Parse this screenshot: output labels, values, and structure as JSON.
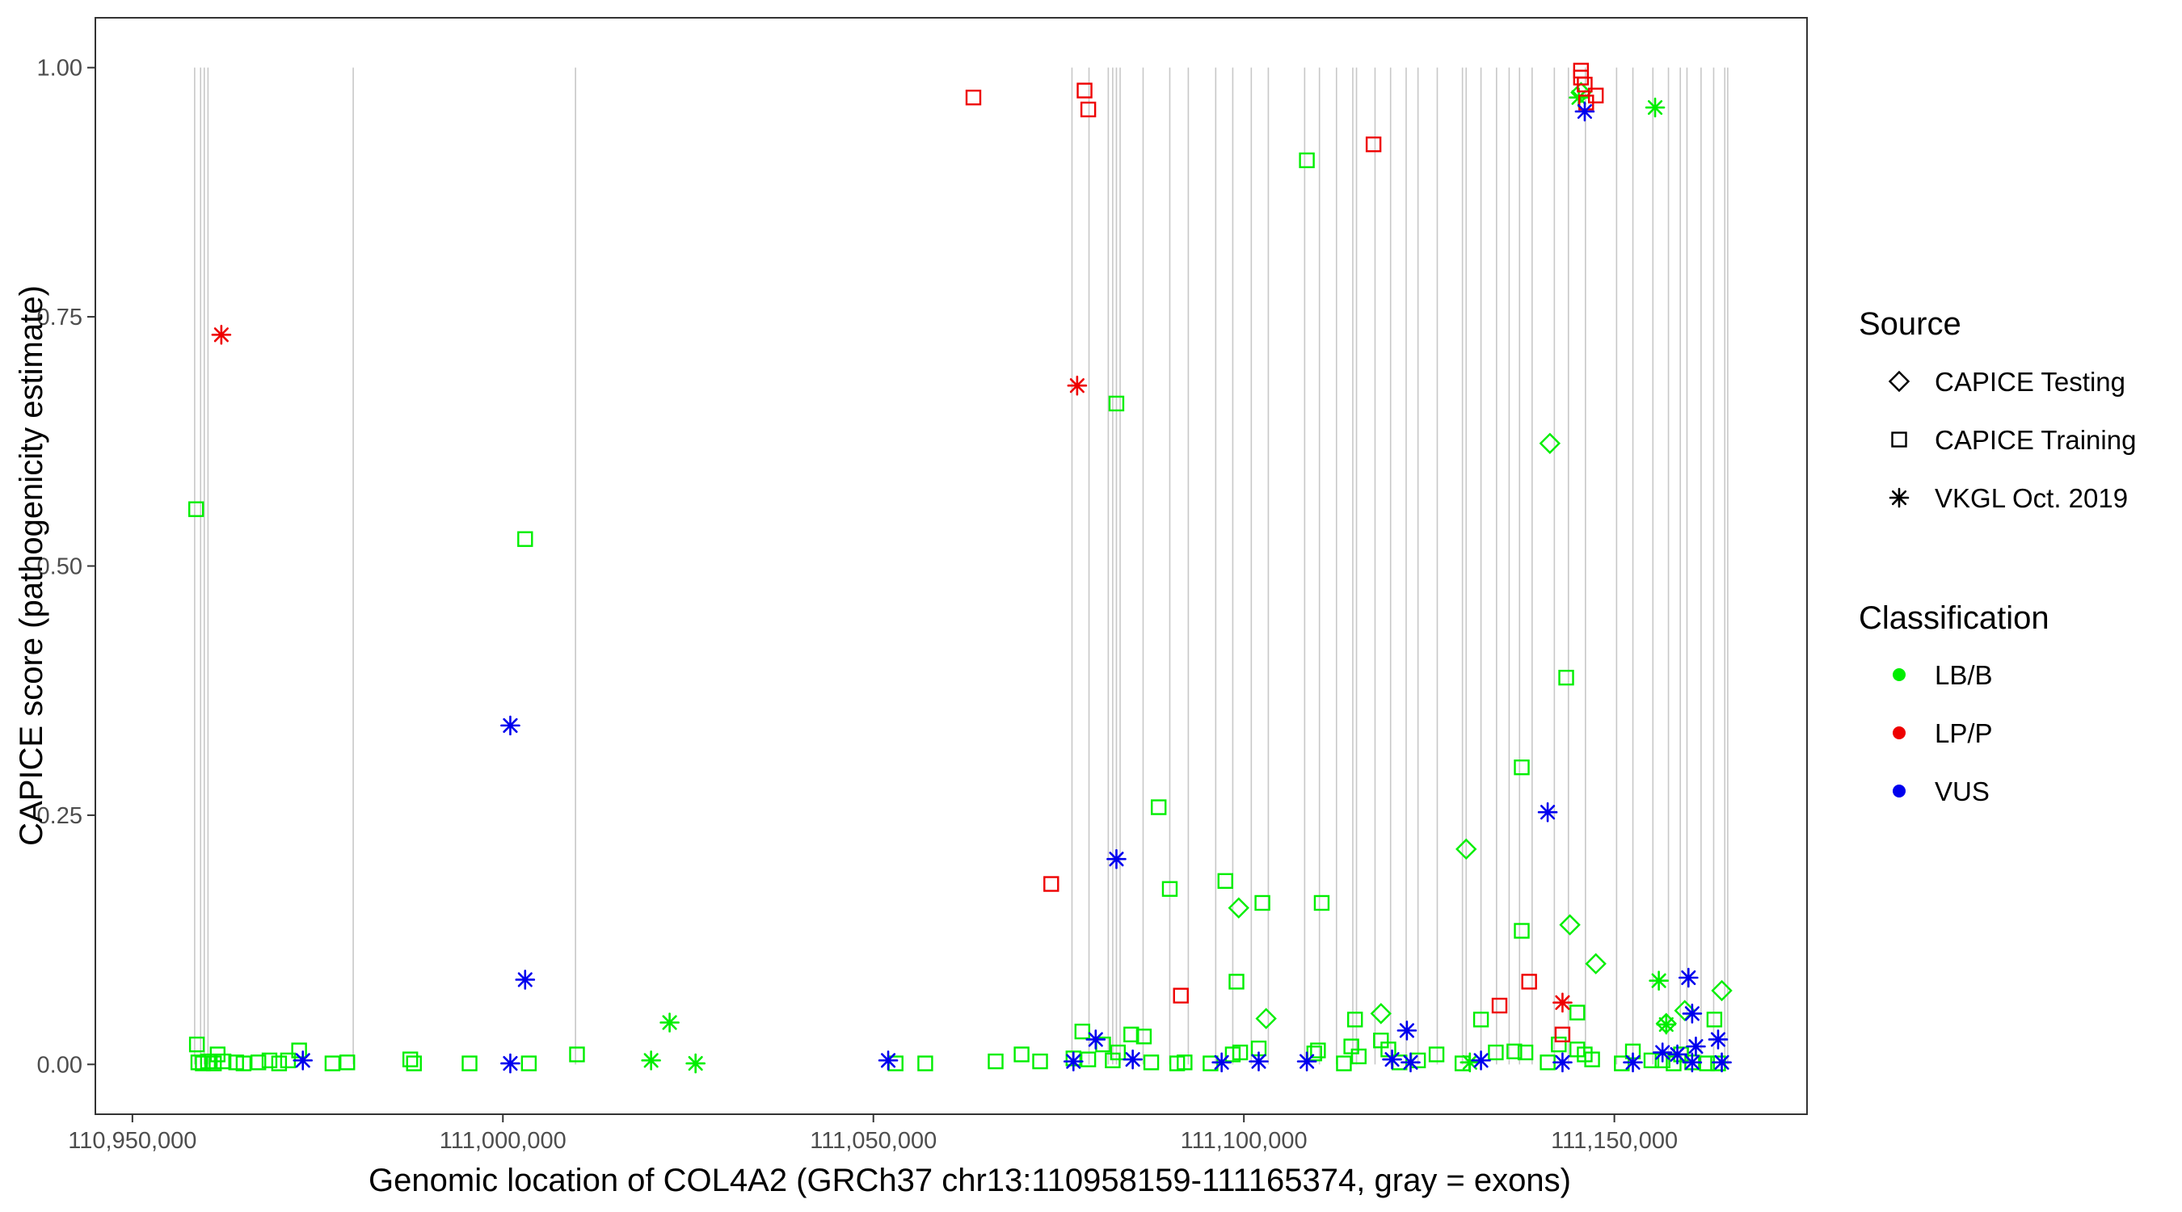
{
  "chart_data": {
    "type": "scatter",
    "xlabel": "Genomic location of COL4A2 (GRCh37 chr13:110958159-111165374, gray = exons)",
    "ylabel": "CAPICE score (pathogenicity estimate)",
    "xlim": [
      110945000,
      111176000
    ],
    "ylim": [
      -0.05,
      1.05
    ],
    "x_ticks": [
      110950000,
      111000000,
      111050000,
      111100000,
      111150000
    ],
    "x_tick_labels": [
      "110,950,000",
      "111,000,000",
      "111,050,000",
      "111,100,000",
      "111,150,000"
    ],
    "y_ticks": [
      0,
      0.25,
      0.5,
      0.75,
      1.0
    ],
    "y_tick_labels": [
      "0.00",
      "0.25",
      "0.50",
      "0.75",
      "1.00"
    ],
    "grid": false,
    "exons": [
      110958400,
      110959200,
      110959700,
      110960200,
      110979800,
      111009800,
      111076800,
      111079100,
      111081700,
      111082300,
      111082800,
      111083300,
      111086400,
      111090000,
      111092500,
      111096200,
      111098500,
      111101000,
      111103300,
      111108200,
      111110200,
      111112500,
      111114700,
      111115200,
      111117700,
      111119800,
      111121900,
      111123500,
      111126100,
      111129500,
      111130000,
      111132000,
      111134100,
      111135800,
      111137200,
      111138900,
      111141900,
      111143800,
      111146100,
      111150300,
      111152500,
      111155200,
      111157300,
      111158900,
      111159800,
      111161700,
      111163400,
      111164900,
      111165300
    ],
    "legend": {
      "source_title": "Source",
      "source_entries": [
        {
          "label": "CAPICE Testing",
          "shape": "diamond"
        },
        {
          "label": "CAPICE Training",
          "shape": "square"
        },
        {
          "label": "VKGL Oct. 2019",
          "shape": "asterisk"
        }
      ],
      "class_title": "Classification",
      "class_entries": [
        {
          "label": "LB/B",
          "color": "#00ee00"
        },
        {
          "label": "LP/P",
          "color": "#ee0000"
        },
        {
          "label": "VUS",
          "color": "#0000ee"
        }
      ],
      "placement": "right"
    },
    "series": [
      {
        "name": "LB/B · CAPICE Training",
        "shape": "square",
        "color": "#00ee00",
        "points": [
          [
            110958600,
            0.557
          ],
          [
            110958700,
            0.02
          ],
          [
            110958900,
            0.002
          ],
          [
            110959500,
            0.001
          ],
          [
            110960200,
            0.003
          ],
          [
            110961000,
            0.001
          ],
          [
            110961500,
            0.01
          ],
          [
            110962300,
            0.003
          ],
          [
            110964000,
            0.002
          ],
          [
            110965000,
            0.001
          ],
          [
            110967000,
            0.002
          ],
          [
            110968500,
            0.004
          ],
          [
            110969800,
            0.001
          ],
          [
            110971000,
            0.004
          ],
          [
            110972500,
            0.014
          ],
          [
            110977000,
            0.001
          ],
          [
            110979000,
            0.002
          ],
          [
            110987500,
            0.005
          ],
          [
            110988000,
            0.001
          ],
          [
            110995500,
            0.001
          ],
          [
            111003000,
            0.527
          ],
          [
            111003500,
            0.001
          ],
          [
            111010000,
            0.01
          ],
          [
            111053000,
            0.001
          ],
          [
            111057000,
            0.001
          ],
          [
            111066500,
            0.003
          ],
          [
            111070000,
            0.01
          ],
          [
            111072500,
            0.003
          ],
          [
            111077000,
            0.006
          ],
          [
            111078200,
            0.033
          ],
          [
            111079000,
            0.005
          ],
          [
            111081000,
            0.02
          ],
          [
            111082300,
            0.004
          ],
          [
            111082800,
            0.663
          ],
          [
            111083000,
            0.012
          ],
          [
            111084800,
            0.03
          ],
          [
            111086500,
            0.028
          ],
          [
            111087500,
            0.002
          ],
          [
            111088500,
            0.258
          ],
          [
            111090000,
            0.176
          ],
          [
            111091000,
            0.001
          ],
          [
            111092000,
            0.002
          ],
          [
            111095500,
            0.001
          ],
          [
            111097500,
            0.184
          ],
          [
            111098500,
            0.01
          ],
          [
            111099000,
            0.083
          ],
          [
            111099500,
            0.012
          ],
          [
            111102000,
            0.016
          ],
          [
            111102500,
            0.162
          ],
          [
            111108500,
            0.907
          ],
          [
            111109500,
            0.011
          ],
          [
            111110500,
            0.162
          ],
          [
            111110000,
            0.014
          ],
          [
            111113500,
            0.001
          ],
          [
            111115000,
            0.045
          ],
          [
            111114500,
            0.018
          ],
          [
            111115500,
            0.008
          ],
          [
            111118500,
            0.024
          ],
          [
            111119500,
            0.015
          ],
          [
            111121000,
            0.002
          ],
          [
            111123500,
            0.004
          ],
          [
            111126000,
            0.01
          ],
          [
            111129500,
            0.001
          ],
          [
            111132000,
            0.045
          ],
          [
            111134000,
            0.012
          ],
          [
            111136500,
            0.013
          ],
          [
            111137500,
            0.134
          ],
          [
            111137500,
            0.298
          ],
          [
            111138000,
            0.012
          ],
          [
            111141000,
            0.002
          ],
          [
            111142500,
            0.02
          ],
          [
            111143500,
            0.388
          ],
          [
            111145000,
            0.052
          ],
          [
            111145000,
            0.015
          ],
          [
            111146000,
            0.01
          ],
          [
            111147000,
            0.005
          ],
          [
            111151000,
            0.001
          ],
          [
            111152500,
            0.013
          ],
          [
            111155000,
            0.004
          ],
          [
            111156500,
            0.004
          ],
          [
            111158000,
            0.001
          ],
          [
            111159000,
            0.01
          ],
          [
            111160500,
            0.002
          ],
          [
            111162500,
            0.001
          ],
          [
            111163500,
            0.045
          ],
          [
            111164000,
            0.001
          ]
        ]
      },
      {
        "name": "LB/B · CAPICE Testing",
        "shape": "diamond",
        "color": "#00ee00",
        "points": [
          [
            111099300,
            0.157
          ],
          [
            111103000,
            0.046
          ],
          [
            111118500,
            0.051
          ],
          [
            111130000,
            0.216
          ],
          [
            111141300,
            0.623
          ],
          [
            111144000,
            0.14
          ],
          [
            111145500,
            0.975
          ],
          [
            111147500,
            0.101
          ],
          [
            111157000,
            0.041
          ],
          [
            111159500,
            0.054
          ],
          [
            111164500,
            0.074
          ]
        ]
      },
      {
        "name": "LB/B · VKGL Oct. 2019",
        "shape": "asterisk",
        "color": "#00ee00",
        "points": [
          [
            111020000,
            0.004
          ],
          [
            111022500,
            0.042
          ],
          [
            111026000,
            0.001
          ],
          [
            111130500,
            0.002
          ],
          [
            111145200,
            0.97
          ],
          [
            111155500,
            0.96
          ],
          [
            111156000,
            0.084
          ],
          [
            111157000,
            0.04
          ]
        ]
      },
      {
        "name": "LP/P · CAPICE Training",
        "shape": "square",
        "color": "#ee0000",
        "points": [
          [
            111063500,
            0.97
          ],
          [
            111074000,
            0.181
          ],
          [
            111078500,
            0.977
          ],
          [
            111079000,
            0.958
          ],
          [
            111091500,
            0.069
          ],
          [
            111117500,
            0.923
          ],
          [
            111134500,
            0.059
          ],
          [
            111138500,
            0.083
          ],
          [
            111143000,
            0.03
          ],
          [
            111145500,
            0.99
          ],
          [
            111145500,
            0.997
          ],
          [
            111146000,
            0.983
          ],
          [
            111146200,
            0.965
          ],
          [
            111147500,
            0.972
          ]
        ]
      },
      {
        "name": "LP/P · VKGL Oct. 2019",
        "shape": "asterisk",
        "color": "#ee0000",
        "points": [
          [
            110962000,
            0.732
          ],
          [
            111077500,
            0.681
          ],
          [
            111143000,
            0.062
          ]
        ]
      },
      {
        "name": "VUS · VKGL Oct. 2019",
        "shape": "asterisk",
        "color": "#0000ee",
        "points": [
          [
            110973000,
            0.004
          ],
          [
            111001000,
            0.34
          ],
          [
            111001000,
            0.001
          ],
          [
            111003000,
            0.085
          ],
          [
            111052000,
            0.004
          ],
          [
            111077000,
            0.003
          ],
          [
            111080000,
            0.025
          ],
          [
            111082800,
            0.206
          ],
          [
            111085000,
            0.005
          ],
          [
            111097000,
            0.002
          ],
          [
            111102000,
            0.003
          ],
          [
            111108500,
            0.003
          ],
          [
            111120000,
            0.005
          ],
          [
            111122000,
            0.034
          ],
          [
            111122500,
            0.002
          ],
          [
            111132000,
            0.004
          ],
          [
            111141000,
            0.253
          ],
          [
            111143000,
            0.002
          ],
          [
            111146000,
            0.956
          ],
          [
            111152500,
            0.002
          ],
          [
            111156500,
            0.012
          ],
          [
            111158500,
            0.01
          ],
          [
            111160000,
            0.087
          ],
          [
            111160500,
            0.051
          ],
          [
            111160500,
            0.002
          ],
          [
            111161000,
            0.018
          ],
          [
            111164000,
            0.025
          ],
          [
            111164500,
            0.002
          ]
        ]
      }
    ]
  }
}
